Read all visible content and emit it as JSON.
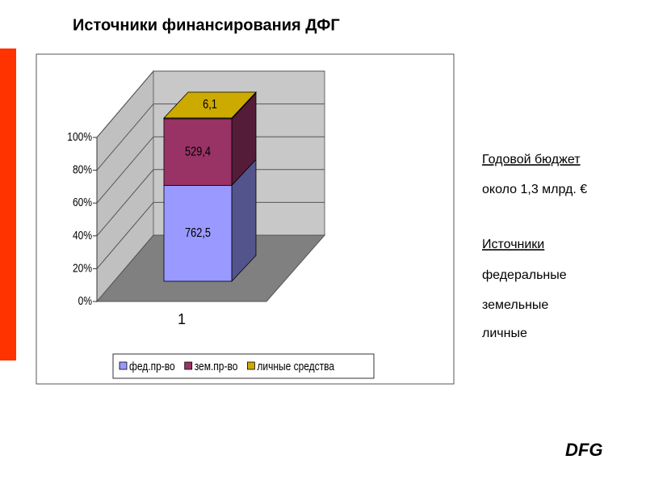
{
  "title": "Источники финансирования ДФГ",
  "notes": [
    "Годовой бюджет",
    "около 1,3 млрд. €",
    "Источники",
    "федеральные",
    "земельные",
    "личные"
  ],
  "logo": "DFG",
  "chart_data": {
    "type": "bar",
    "stacking": "percent",
    "categories": [
      "1"
    ],
    "series": [
      {
        "name": "фед.пр-во",
        "color": "#9999ff",
        "values": [
          762.5
        ],
        "value_labels": [
          "762,5"
        ]
      },
      {
        "name": "зем.пр-во",
        "color": "#993366",
        "values": [
          529.4
        ],
        "value_labels": [
          "529,4"
        ]
      },
      {
        "name": "личные средства",
        "color": "#ccaa00",
        "values": [
          6.1
        ],
        "value_labels": [
          "6,1"
        ]
      }
    ],
    "ylim": [
      0,
      100
    ],
    "yticks": [
      {
        "value": 0,
        "label": "0%"
      },
      {
        "value": 20,
        "label": "20%"
      },
      {
        "value": 40,
        "label": "40%"
      },
      {
        "value": 60,
        "label": "60%"
      },
      {
        "value": 80,
        "label": "80%"
      },
      {
        "value": 100,
        "label": "100%"
      }
    ],
    "grid": true,
    "legend": "bottom"
  }
}
